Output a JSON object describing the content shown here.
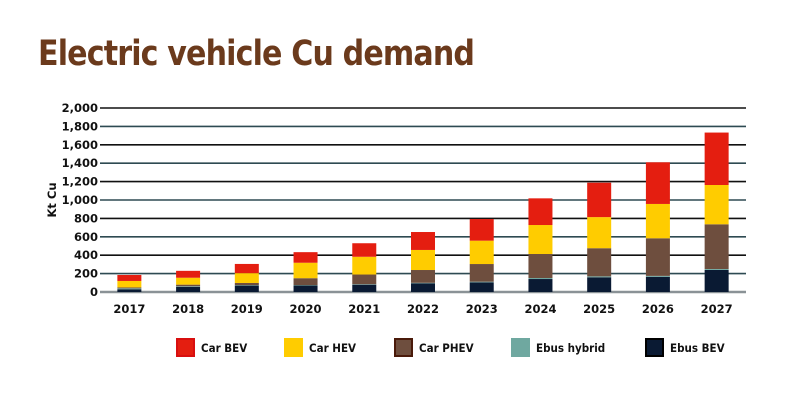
{
  "chart_data": {
    "type": "bar",
    "stacked": true,
    "title": "Electric vehicle Cu demand",
    "xlabel": "",
    "ylabel": "Kt Cu",
    "ylim": [
      0,
      2000
    ],
    "yticks": [
      0,
      200,
      400,
      600,
      800,
      1000,
      1200,
      1400,
      1600,
      1800,
      2000
    ],
    "ytick_labels": [
      "0",
      "200",
      "400",
      "600",
      "800",
      "1,000",
      "1,200",
      "1,400",
      "1,600",
      "1,800",
      "2,000"
    ],
    "grid": true,
    "legend_position": "bottom",
    "categories": [
      "2017",
      "2018",
      "2019",
      "2020",
      "2021",
      "2022",
      "2023",
      "2024",
      "2025",
      "2026",
      "2027"
    ],
    "series": [
      {
        "name": "Ebus BEV",
        "color": "#0a1a33",
        "values": [
          30,
          55,
          70,
          72,
          80,
          95,
          105,
          141,
          160,
          165,
          240
        ]
      },
      {
        "name": "Ebus hybrid",
        "color": "#6fa8a0",
        "values": [
          10,
          7,
          5,
          3,
          5,
          5,
          7,
          11,
          10,
          10,
          10
        ]
      },
      {
        "name": "Car PHEV",
        "color": "#6e4e3e",
        "values": [
          10,
          18,
          23,
          75,
          105,
          139,
          192,
          261,
          306,
          409,
          486
        ]
      },
      {
        "name": "Car HEV",
        "color": "#ffcc00",
        "values": [
          70,
          75,
          107,
          168,
          193,
          218,
          254,
          315,
          338,
          373,
          427
        ]
      },
      {
        "name": "Car BEV",
        "color": "#e41e10",
        "values": [
          65,
          75,
          100,
          115,
          147,
          195,
          235,
          290,
          374,
          453,
          570
        ]
      }
    ]
  },
  "legend": [
    {
      "label": "Car BEV",
      "color": "#e41e10",
      "border": "#d80f0f"
    },
    {
      "label": "Car HEV",
      "color": "#ffcc00",
      "border": "#ffcc00"
    },
    {
      "label": "Car PHEV",
      "color": "#6e4e3e",
      "border": "#4a1a0a"
    },
    {
      "label": "Ebus hybrid",
      "color": "#6fa8a0",
      "border": "#6fa8a0"
    },
    {
      "label": "Ebus BEV",
      "color": "#0a1a33",
      "border": "#000000"
    }
  ]
}
